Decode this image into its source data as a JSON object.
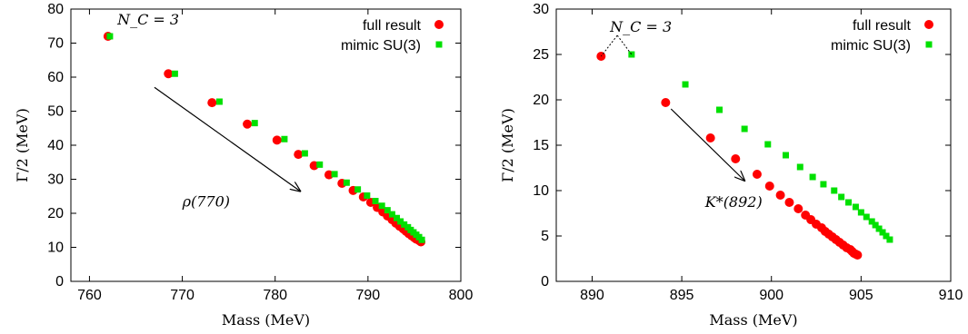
{
  "chart_data": [
    {
      "type": "scatter",
      "xlabel": "Mass (MeV)",
      "ylabel": "Γ/2 (MeV)",
      "xlim": [
        758,
        800
      ],
      "ylim": [
        0,
        80
      ],
      "xticks": [
        760,
        770,
        780,
        790,
        800
      ],
      "yticks": [
        0,
        10,
        20,
        30,
        40,
        50,
        60,
        70,
        80
      ],
      "legend_position": "top-right",
      "grid": false,
      "series": [
        {
          "name": "full result",
          "color": "#ff0000",
          "marker": "circle",
          "x": [
            762.0,
            768.5,
            773.2,
            777.0,
            780.2,
            782.5,
            784.2,
            785.8,
            787.2,
            788.4,
            789.5,
            790.3,
            791.0,
            791.6,
            792.1,
            792.6,
            793.0,
            793.4,
            793.8,
            794.1,
            794.4,
            794.7,
            795.0,
            795.2,
            795.5,
            795.7
          ],
          "y": [
            72.0,
            61.0,
            52.5,
            46.2,
            41.5,
            37.3,
            34.0,
            31.3,
            28.8,
            26.7,
            24.8,
            23.2,
            21.7,
            20.4,
            19.2,
            18.1,
            17.1,
            16.2,
            15.4,
            14.7,
            14.0,
            13.4,
            12.8,
            12.4,
            12.0,
            11.6
          ]
        },
        {
          "name": "mimic SU(3)",
          "color": "#00e000",
          "marker": "square",
          "x": [
            762.2,
            769.2,
            774.0,
            777.8,
            781.0,
            783.2,
            784.8,
            786.4,
            787.7,
            788.9,
            789.9,
            790.8,
            791.5,
            792.1,
            792.6,
            793.1,
            793.5,
            793.9,
            794.3,
            794.6,
            794.9,
            795.2,
            795.5,
            795.8
          ],
          "y": [
            72.0,
            61.0,
            52.8,
            46.5,
            41.8,
            37.6,
            34.3,
            31.5,
            29.0,
            27.0,
            25.2,
            23.6,
            22.2,
            20.9,
            19.7,
            18.6,
            17.6,
            16.7,
            15.9,
            15.1,
            14.4,
            13.7,
            13.0,
            12.2
          ]
        }
      ],
      "annotations": [
        {
          "text": "N_C = 3",
          "x": 763.0,
          "y": 75.5
        },
        {
          "text": "ρ(770)",
          "x": 770.0,
          "y": 22.0
        },
        {
          "type": "arrow",
          "from": [
            767.0,
            57.0
          ],
          "to": [
            782.7,
            26.5
          ]
        }
      ]
    },
    {
      "type": "scatter",
      "xlabel": "Mass (MeV)",
      "ylabel": "Γ/2 (MeV)",
      "xlim": [
        888,
        910
      ],
      "ylim": [
        0,
        30
      ],
      "xticks": [
        890,
        895,
        900,
        905,
        910
      ],
      "yticks": [
        0,
        5,
        10,
        15,
        20,
        25,
        30
      ],
      "legend_position": "top-right",
      "grid": false,
      "series": [
        {
          "name": "full result",
          "color": "#ff0000",
          "marker": "circle",
          "x": [
            890.5,
            894.1,
            896.6,
            898.0,
            899.2,
            899.9,
            900.5,
            901.0,
            901.5,
            901.9,
            902.2,
            902.5,
            902.8,
            903.0,
            903.2,
            903.4,
            903.6,
            903.8,
            904.0,
            904.2,
            904.4,
            904.5,
            904.6,
            904.7,
            904.8
          ],
          "y": [
            24.8,
            19.7,
            15.8,
            13.5,
            11.8,
            10.5,
            9.5,
            8.7,
            8.0,
            7.3,
            6.8,
            6.3,
            5.9,
            5.5,
            5.2,
            4.9,
            4.6,
            4.3,
            4.0,
            3.7,
            3.5,
            3.3,
            3.1,
            3.0,
            2.9
          ]
        },
        {
          "name": "mimic SU(3)",
          "color": "#00e000",
          "marker": "square",
          "x": [
            892.2,
            895.2,
            897.1,
            898.5,
            899.8,
            900.8,
            901.6,
            902.3,
            902.9,
            903.5,
            903.9,
            904.3,
            904.7,
            905.0,
            905.3,
            905.6,
            905.8,
            906.0,
            906.2,
            906.4,
            906.6
          ],
          "y": [
            25.0,
            21.7,
            18.9,
            16.8,
            15.1,
            13.9,
            12.6,
            11.5,
            10.7,
            10.0,
            9.3,
            8.7,
            8.2,
            7.6,
            7.1,
            6.6,
            6.2,
            5.8,
            5.4,
            5.0,
            4.6
          ]
        }
      ],
      "annotations": [
        {
          "text": "N_C = 3",
          "x": 891.0,
          "y": 27.5
        },
        {
          "text": "K*(892)",
          "x": 896.3,
          "y": 8.2
        },
        {
          "type": "arrow",
          "from": [
            894.4,
            19.0
          ],
          "to": [
            898.5,
            11.1
          ]
        }
      ]
    }
  ]
}
